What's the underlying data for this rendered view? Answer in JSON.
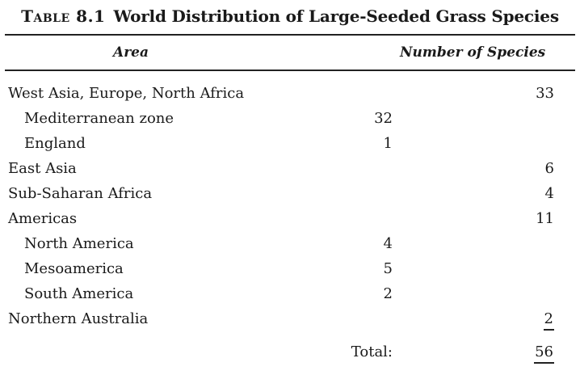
{
  "table": {
    "label": "Table 8.1",
    "title": "World Distribution of Large-Seeded Grass Species",
    "columns": {
      "area": "Area",
      "number": "Number of Species"
    },
    "rows": [
      {
        "area": "West Asia, Europe, North Africa",
        "subtotal": "",
        "total": "33"
      },
      {
        "area": "Mediterranean zone",
        "subtotal": "32",
        "total": ""
      },
      {
        "area": "England",
        "subtotal": "1",
        "total": ""
      },
      {
        "area": "East Asia",
        "subtotal": "",
        "total": "6"
      },
      {
        "area": "Sub-Saharan Africa",
        "subtotal": "",
        "total": "4"
      },
      {
        "area": "Americas",
        "subtotal": "",
        "total": "11"
      },
      {
        "area": "North America",
        "subtotal": "4",
        "total": ""
      },
      {
        "area": "Mesoamerica",
        "subtotal": "5",
        "total": ""
      },
      {
        "area": "South America",
        "subtotal": "2",
        "total": ""
      },
      {
        "area": "Northern Australia",
        "subtotal": "",
        "total": "2"
      }
    ],
    "total_label": "Total:",
    "total_value": "56"
  }
}
